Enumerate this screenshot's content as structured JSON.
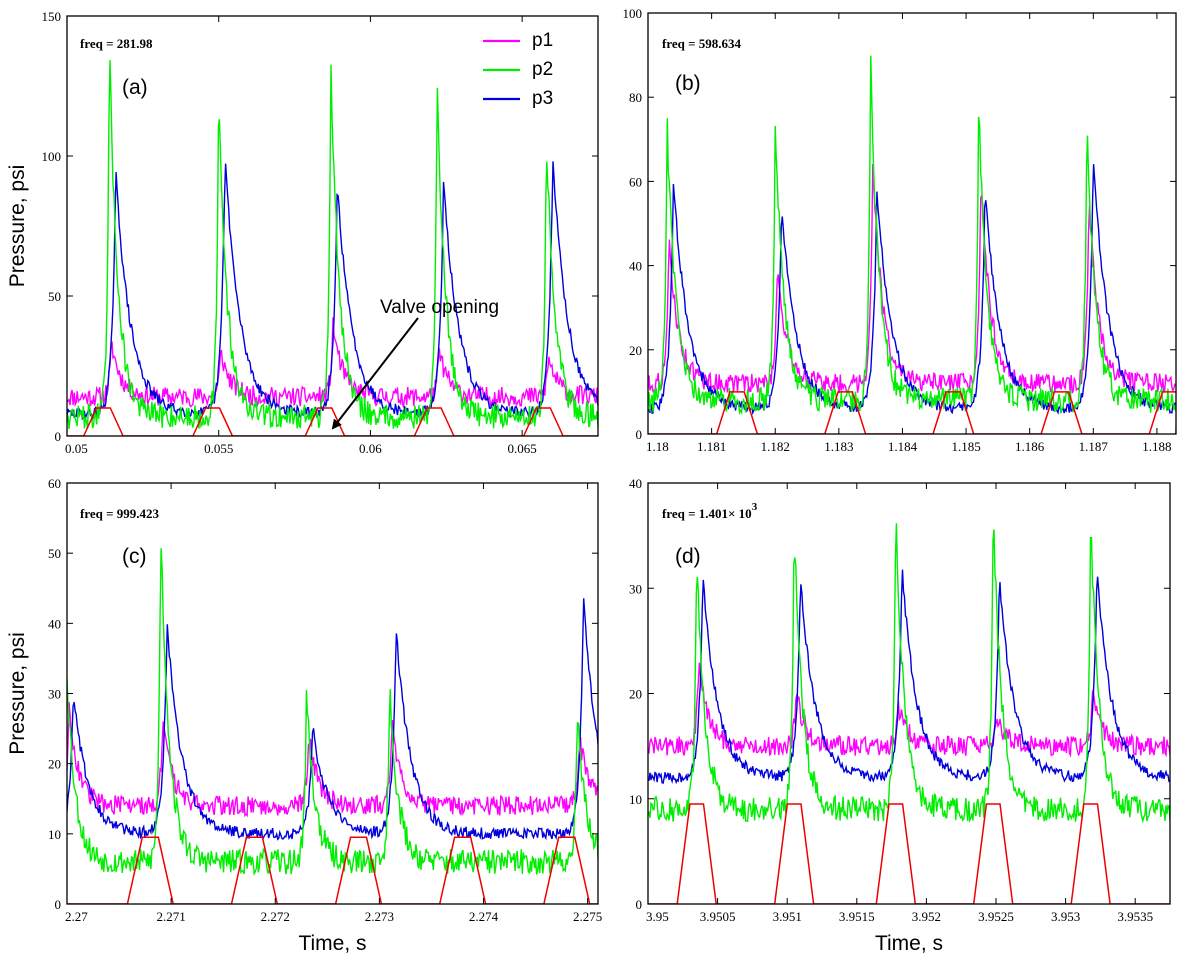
{
  "colors": {
    "p1": "#ff00ff",
    "p2": "#00ee00",
    "p3": "#0000dd",
    "valve": "#ee0000"
  },
  "legend": [
    {
      "key": "p1",
      "label": "p1"
    },
    {
      "key": "p2",
      "label": "p2"
    },
    {
      "key": "p3",
      "label": "p3"
    }
  ],
  "annotation": {
    "text": "Valve opening"
  },
  "chart_data": [
    {
      "type": "line",
      "panel_label": "(a)",
      "freq_text": "freq = 281.98",
      "ylabel": "Pressure, psi",
      "xlabel": "",
      "xlim": [
        0.05,
        0.0675
      ],
      "ylim": [
        0,
        150
      ],
      "xticks": [
        0.05,
        0.055,
        0.06,
        0.065
      ],
      "xtick_labels": [
        "0.05",
        "0.055",
        "0.06",
        "0.065"
      ],
      "yticks": [
        0,
        50,
        100,
        150
      ],
      "ytick_labels": [
        "0",
        "50",
        "100",
        "150"
      ],
      "peaks": [
        0.0514,
        0.055,
        0.0587,
        0.0622,
        0.0658
      ],
      "peak_heights": {
        "p1": [
          33,
          30,
          40,
          30,
          28
        ],
        "p2": [
          138,
          122,
          132,
          126,
          107
        ],
        "p3": [
          94,
          100,
          90,
          92,
          100
        ]
      },
      "baseline": {
        "p1": 14,
        "p2": 7,
        "p3": 8
      },
      "valve": {
        "centers": [
          0.0512,
          0.0548,
          0.0585,
          0.0621,
          0.0657
        ],
        "height": 10,
        "half_width": 0.00065
      }
    },
    {
      "type": "line",
      "panel_label": "(b)",
      "freq_text": "freq = 598.634",
      "ylabel": "",
      "xlabel": "",
      "xlim": [
        1.18,
        1.1883
      ],
      "ylim": [
        0,
        100
      ],
      "xticks": [
        1.18,
        1.181,
        1.182,
        1.183,
        1.184,
        1.185,
        1.186,
        1.187,
        1.188
      ],
      "xtick_labels": [
        "1.18",
        "1.181",
        "1.182",
        "1.183",
        "1.184",
        "1.185",
        "1.186",
        "1.187",
        "1.188"
      ],
      "yticks": [
        0,
        20,
        40,
        60,
        80,
        100
      ],
      "ytick_labels": [
        "0",
        "20",
        "40",
        "60",
        "80",
        "100"
      ],
      "peaks": [
        1.1803,
        1.182,
        1.1835,
        1.1852,
        1.1869
      ],
      "peak_heights": {
        "p1": [
          46,
          40,
          66,
          62,
          56
        ],
        "p2": [
          74,
          76,
          89,
          78,
          74
        ],
        "p3": [
          60,
          54,
          58,
          58,
          66
        ]
      },
      "baseline": {
        "p1": 12,
        "p2": 8,
        "p3": 6
      },
      "valve": {
        "centers": [
          1.1814,
          1.1831,
          1.1848,
          1.1865,
          1.1882
        ],
        "height": 10,
        "half_width": 0.00032
      }
    },
    {
      "type": "line",
      "panel_label": "(c)",
      "freq_text": "freq = 999.423",
      "ylabel": "Pressure, psi",
      "xlabel": "Time, s",
      "xlim": [
        2.27,
        2.2751
      ],
      "ylim": [
        0,
        60
      ],
      "xticks": [
        2.27,
        2.271,
        2.272,
        2.273,
        2.274,
        2.275
      ],
      "xtick_labels": [
        "2.27",
        "2.271",
        "2.272",
        "2.273",
        "2.274",
        "2.275"
      ],
      "yticks": [
        0,
        10,
        20,
        30,
        40,
        50,
        60
      ],
      "ytick_labels": [
        "0",
        "10",
        "20",
        "30",
        "40",
        "50",
        "60"
      ],
      "peaks": [
        2.27,
        2.2709,
        2.2723,
        2.2731,
        2.2749
      ],
      "peak_heights": {
        "p1": [
          28,
          26,
          24,
          26,
          24
        ],
        "p2": [
          33,
          54,
          30,
          31,
          28
        ],
        "p3": [
          30,
          40,
          25,
          39,
          44
        ]
      },
      "baseline": {
        "p1": 14,
        "p2": 6,
        "p3": 10
      },
      "valve": {
        "centers": [
          2.2708,
          2.2718,
          2.2728,
          2.2738,
          2.2748
        ],
        "height": 9.5,
        "half_width": 0.00022
      }
    },
    {
      "type": "line",
      "panel_label": "(d)",
      "freq_text": "freq = 1.401× 10",
      "freq_exp": "3",
      "ylabel": "",
      "xlabel": "Time, s",
      "xlim": [
        3.95,
        3.95375
      ],
      "ylim": [
        0,
        40
      ],
      "xticks": [
        3.95,
        3.9505,
        3.951,
        3.9515,
        3.952,
        3.9525,
        3.953,
        3.9535
      ],
      "xtick_labels": [
        "3.95",
        "3.9505",
        "3.951",
        "3.9515",
        "3.952",
        "3.9525",
        "3.953",
        "3.9535"
      ],
      "yticks": [
        0,
        10,
        20,
        30,
        40
      ],
      "ytick_labels": [
        "0",
        "10",
        "20",
        "30",
        "40"
      ],
      "peaks": [
        3.95035,
        3.95105,
        3.95178,
        3.95248,
        3.95318
      ],
      "peak_heights": {
        "p1": [
          23,
          20,
          19,
          18,
          20
        ],
        "p2": [
          33,
          36,
          38,
          38,
          37
        ],
        "p3": [
          31,
          31,
          32,
          31,
          32
        ]
      },
      "baseline": {
        "p1": 15,
        "p2": 9,
        "p3": 12
      },
      "valve": {
        "centers": [
          3.95035,
          3.95105,
          3.95178,
          3.95248,
          3.95318
        ],
        "height": 9.5,
        "half_width": 0.00014
      }
    }
  ]
}
